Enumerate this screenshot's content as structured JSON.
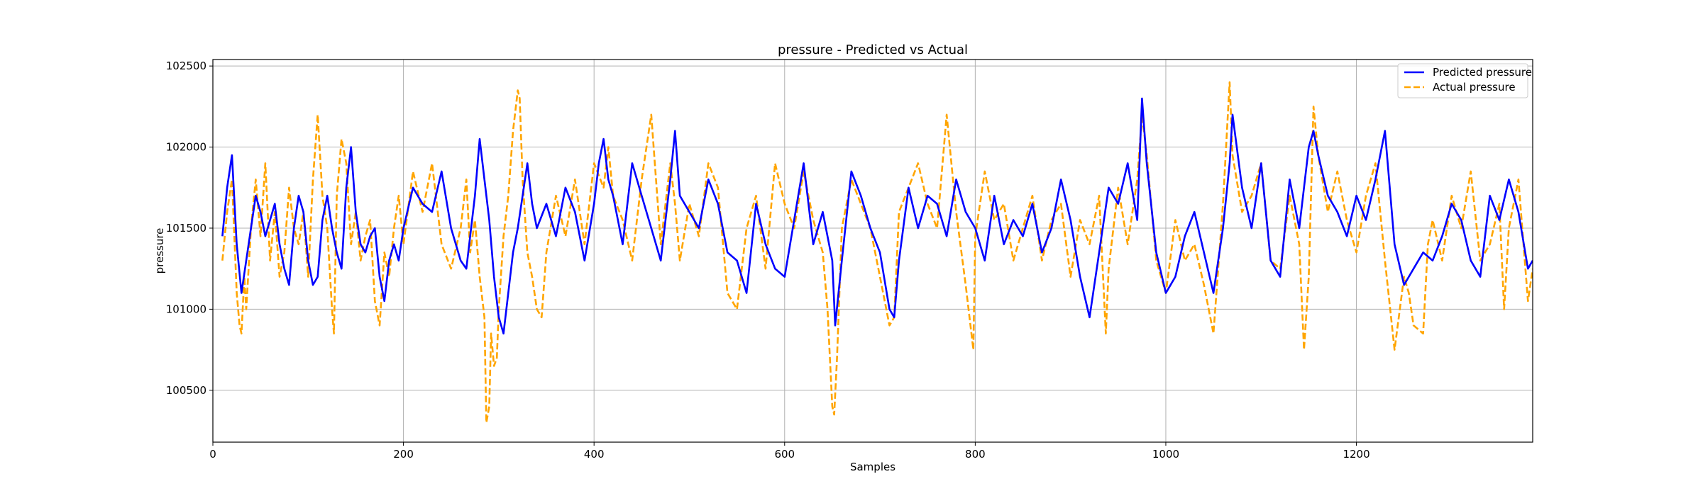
{
  "chart_data": {
    "type": "line",
    "title": "pressure - Predicted vs Actual",
    "xlabel": "Samples",
    "ylabel": "pressure",
    "xlim": [
      0,
      1385
    ],
    "ylim": [
      100180,
      102540
    ],
    "x_ticks": [
      0,
      200,
      400,
      600,
      800,
      1000,
      1200
    ],
    "y_ticks": [
      100500,
      101000,
      101500,
      102000,
      102500
    ],
    "grid": true,
    "legend_position": "top-right",
    "series": [
      {
        "name": "Predicted pressure",
        "color": "#0000ff",
        "style": "solid",
        "x": [
          10,
          15,
          20,
          25,
          30,
          35,
          40,
          45,
          50,
          55,
          60,
          65,
          70,
          75,
          80,
          85,
          90,
          95,
          100,
          105,
          110,
          115,
          120,
          125,
          130,
          135,
          140,
          145,
          150,
          155,
          160,
          165,
          170,
          175,
          180,
          185,
          190,
          195,
          200,
          210,
          220,
          230,
          240,
          250,
          260,
          266,
          270,
          275,
          280,
          285,
          290,
          295,
          300,
          305,
          310,
          315,
          320,
          325,
          330,
          335,
          340,
          350,
          360,
          370,
          380,
          390,
          400,
          405,
          410,
          415,
          420,
          425,
          430,
          440,
          450,
          460,
          470,
          480,
          485,
          490,
          500,
          510,
          520,
          530,
          540,
          550,
          560,
          570,
          580,
          590,
          600,
          610,
          620,
          630,
          640,
          650,
          653,
          660,
          670,
          680,
          690,
          700,
          710,
          715,
          720,
          730,
          740,
          750,
          760,
          770,
          780,
          790,
          800,
          810,
          820,
          830,
          840,
          850,
          860,
          870,
          880,
          890,
          900,
          910,
          920,
          930,
          940,
          950,
          960,
          970,
          975,
          980,
          990,
          1000,
          1010,
          1020,
          1030,
          1040,
          1050,
          1060,
          1067,
          1070,
          1080,
          1090,
          1100,
          1110,
          1120,
          1130,
          1140,
          1150,
          1155,
          1160,
          1170,
          1180,
          1190,
          1200,
          1210,
          1220,
          1230,
          1240,
          1250,
          1260,
          1270,
          1280,
          1290,
          1300,
          1310,
          1320,
          1330,
          1340,
          1350,
          1360,
          1370,
          1380,
          1385
        ],
        "values": [
          101450,
          101750,
          101950,
          101400,
          101100,
          101300,
          101500,
          101700,
          101600,
          101450,
          101550,
          101650,
          101400,
          101250,
          101150,
          101500,
          101700,
          101600,
          101300,
          101150,
          101200,
          101550,
          101700,
          101500,
          101350,
          101250,
          101750,
          102000,
          101600,
          101400,
          101350,
          101450,
          101500,
          101200,
          101050,
          101300,
          101400,
          101300,
          101500,
          101750,
          101650,
          101600,
          101850,
          101500,
          101300,
          101250,
          101450,
          101700,
          102050,
          101800,
          101550,
          101200,
          100950,
          100850,
          101100,
          101350,
          101500,
          101700,
          101900,
          101650,
          101500,
          101650,
          101450,
          101750,
          101600,
          101300,
          101650,
          101900,
          102050,
          101800,
          101700,
          101550,
          101400,
          101900,
          101700,
          101500,
          101300,
          101800,
          102100,
          101700,
          101600,
          101500,
          101800,
          101650,
          101350,
          101300,
          101100,
          101650,
          101400,
          101250,
          101200,
          101550,
          101900,
          101400,
          101600,
          101300,
          100900,
          101300,
          101850,
          101700,
          101500,
          101350,
          101000,
          100950,
          101300,
          101750,
          101500,
          101700,
          101650,
          101450,
          101800,
          101600,
          101500,
          101300,
          101700,
          101400,
          101550,
          101450,
          101650,
          101350,
          101500,
          101800,
          101550,
          101200,
          100950,
          101350,
          101750,
          101650,
          101900,
          101550,
          102300,
          101900,
          101350,
          101100,
          101200,
          101450,
          101600,
          101350,
          101100,
          101500,
          101900,
          102200,
          101750,
          101500,
          101900,
          101300,
          101200,
          101800,
          101500,
          102000,
          102100,
          101950,
          101700,
          101600,
          101450,
          101700,
          101550,
          101800,
          102100,
          101400,
          101150,
          101250,
          101350,
          101300,
          101450,
          101650,
          101550,
          101300,
          101200,
          101700,
          101550,
          101800,
          101600,
          101250,
          101300
        ]
      },
      {
        "name": "Actual pressure",
        "color": "#ffa500",
        "style": "dashed",
        "x": [
          10,
          15,
          20,
          25,
          28,
          30,
          33,
          35,
          40,
          45,
          50,
          55,
          60,
          65,
          70,
          75,
          80,
          85,
          90,
          95,
          100,
          105,
          110,
          115,
          120,
          125,
          127,
          130,
          135,
          140,
          145,
          150,
          155,
          160,
          165,
          170,
          175,
          180,
          185,
          190,
          195,
          200,
          210,
          220,
          230,
          240,
          250,
          260,
          266,
          270,
          275,
          280,
          285,
          287,
          290,
          292,
          295,
          298,
          300,
          305,
          310,
          315,
          320,
          322,
          325,
          330,
          335,
          340,
          345,
          350,
          360,
          370,
          380,
          390,
          400,
          410,
          415,
          420,
          430,
          440,
          450,
          460,
          470,
          480,
          485,
          490,
          500,
          510,
          520,
          530,
          540,
          550,
          560,
          570,
          580,
          590,
          600,
          610,
          620,
          630,
          640,
          645,
          650,
          652,
          655,
          660,
          670,
          680,
          690,
          700,
          710,
          715,
          720,
          730,
          740,
          750,
          760,
          770,
          780,
          790,
          798,
          800,
          810,
          820,
          830,
          840,
          850,
          860,
          870,
          880,
          890,
          900,
          910,
          920,
          930,
          937,
          940,
          950,
          960,
          970,
          975,
          980,
          990,
          1000,
          1010,
          1020,
          1030,
          1040,
          1050,
          1060,
          1067,
          1070,
          1080,
          1090,
          1100,
          1110,
          1120,
          1130,
          1140,
          1145,
          1150,
          1155,
          1160,
          1170,
          1180,
          1190,
          1200,
          1210,
          1220,
          1230,
          1240,
          1250,
          1255,
          1260,
          1270,
          1275,
          1280,
          1290,
          1300,
          1310,
          1320,
          1330,
          1340,
          1350,
          1355,
          1360,
          1370,
          1380,
          1385
        ],
        "values": [
          101300,
          101600,
          101800,
          101100,
          100900,
          100850,
          101200,
          101000,
          101500,
          101800,
          101450,
          101900,
          101300,
          101600,
          101200,
          101350,
          101750,
          101500,
          101400,
          101600,
          101200,
          101800,
          102200,
          101700,
          101500,
          101000,
          100850,
          101700,
          102050,
          101900,
          101400,
          101600,
          101300,
          101450,
          101550,
          101050,
          100900,
          101350,
          101200,
          101500,
          101700,
          101400,
          101850,
          101600,
          101900,
          101400,
          101250,
          101500,
          101800,
          101350,
          101550,
          101200,
          100950,
          100300,
          100400,
          100850,
          100650,
          100700,
          101000,
          101450,
          101700,
          102100,
          102350,
          102300,
          101800,
          101350,
          101200,
          101000,
          100950,
          101350,
          101700,
          101450,
          101800,
          101400,
          101900,
          101750,
          102000,
          101700,
          101550,
          101300,
          101800,
          102200,
          101400,
          101900,
          101650,
          101300,
          101650,
          101450,
          101900,
          101750,
          101100,
          101000,
          101500,
          101700,
          101250,
          101900,
          101650,
          101500,
          101850,
          101550,
          101350,
          101000,
          100400,
          100350,
          100700,
          101500,
          101800,
          101650,
          101500,
          101200,
          100900,
          100950,
          101600,
          101750,
          101900,
          101650,
          101500,
          102200,
          101600,
          101150,
          100750,
          101450,
          101850,
          101550,
          101650,
          101300,
          101500,
          101700,
          101300,
          101550,
          101650,
          101200,
          101550,
          101400,
          101700,
          100850,
          101250,
          101750,
          101400,
          101800,
          102200,
          101950,
          101300,
          101100,
          101550,
          101300,
          101400,
          101150,
          100850,
          101650,
          102400,
          101950,
          101600,
          101700,
          101900,
          101300,
          101250,
          101700,
          101400,
          100750,
          101200,
          102250,
          101950,
          101600,
          101850,
          101550,
          101350,
          101700,
          101900,
          101300,
          100750,
          101200,
          101100,
          100900,
          100850,
          101400,
          101550,
          101300,
          101700,
          101500,
          101850,
          101300,
          101400,
          101650,
          101000,
          101500,
          101800,
          101050,
          101250
        ]
      }
    ]
  }
}
